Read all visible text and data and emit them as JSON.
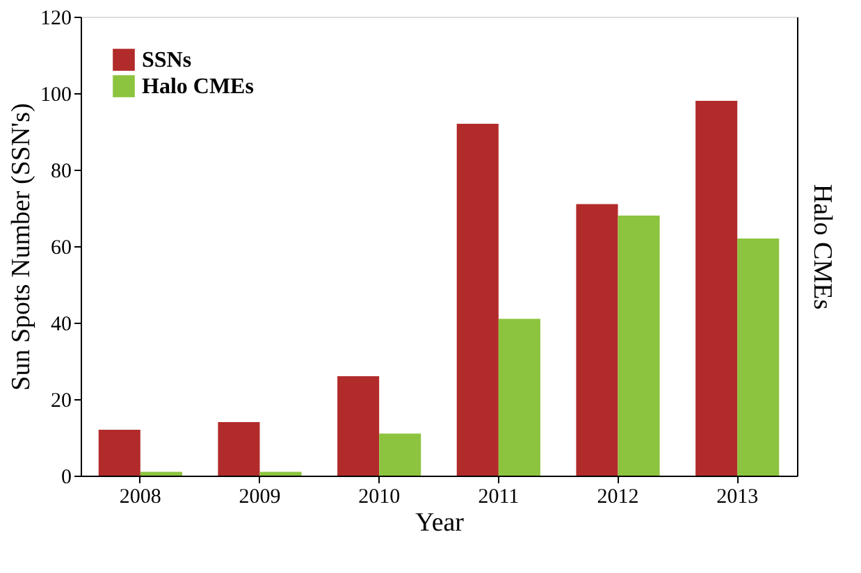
{
  "chart_data": {
    "type": "bar",
    "xlabel": "Year",
    "ylabel": "Sun Spots Number (SSN's)",
    "y2label": "Halo CMEs",
    "categories": [
      "2008",
      "2009",
      "2010",
      "2011",
      "2012",
      "2013"
    ],
    "series": [
      {
        "name": "SSNs",
        "color": "#b22b2b",
        "values": [
          12,
          14,
          26,
          92,
          71,
          98
        ]
      },
      {
        "name": "Halo CMEs",
        "color": "#8cc43f",
        "values": [
          1,
          1,
          11,
          41,
          68,
          62
        ]
      }
    ],
    "ylim": [
      0,
      120
    ],
    "yticks": [
      0,
      20,
      40,
      60,
      80,
      100,
      120
    ],
    "grid": false,
    "legend": "top left"
  }
}
